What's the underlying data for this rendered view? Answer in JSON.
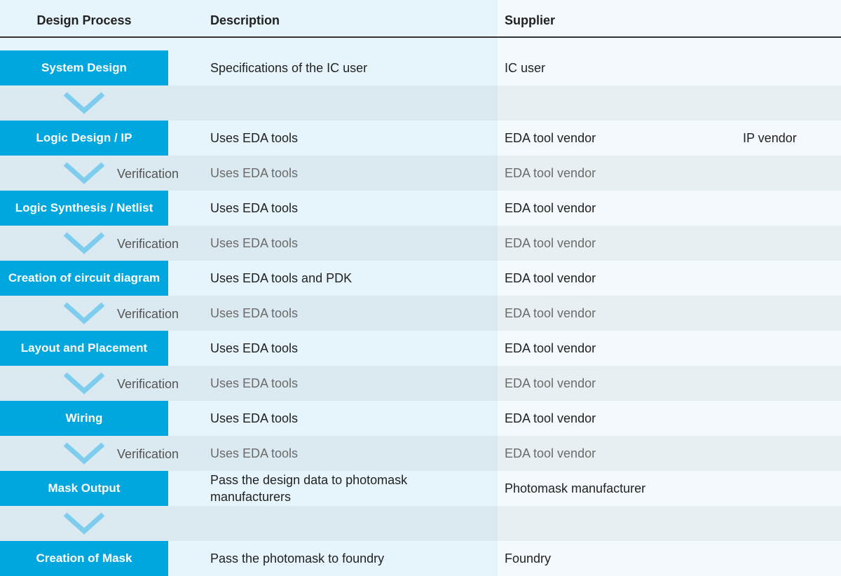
{
  "header": {
    "columns": [
      "Design Process",
      "Description",
      "Supplier"
    ]
  },
  "steps": [
    {
      "process": "System Design",
      "description": "Specifications of the IC user",
      "suppliers": [
        "IC user"
      ]
    },
    {
      "process": "Logic Design / IP",
      "description": "Uses EDA tools",
      "suppliers": [
        "EDA tool vendor",
        "IP vendor"
      ]
    },
    {
      "process": "Logic Synthesis / Netlist",
      "description": "Uses EDA tools",
      "suppliers": [
        "EDA tool vendor"
      ]
    },
    {
      "process": "Creation of circuit diagram",
      "description": "Uses EDA tools and PDK",
      "suppliers": [
        "EDA tool vendor"
      ]
    },
    {
      "process": "Layout and Placement",
      "description": "Uses EDA tools",
      "suppliers": [
        "EDA tool vendor"
      ]
    },
    {
      "process": "Wiring",
      "description": "Uses EDA tools",
      "suppliers": [
        "EDA tool vendor"
      ]
    },
    {
      "process": "Mask Output",
      "description": "Pass the design data to photomask manufacturers",
      "suppliers": [
        "Photomask manufacturer"
      ]
    },
    {
      "process": "Creation of Mask",
      "description": "Pass the photomask to foundry",
      "suppliers": [
        "Foundry"
      ]
    }
  ],
  "transitions": [
    {},
    {
      "label": "Verification",
      "description": "Uses EDA tools",
      "supplier": "EDA tool vendor"
    },
    {
      "label": "Verification",
      "description": "Uses EDA tools",
      "supplier": "EDA tool vendor"
    },
    {
      "label": "Verification",
      "description": "Uses EDA tools",
      "supplier": "EDA tool vendor"
    },
    {
      "label": "Verification",
      "description": "Uses EDA tools",
      "supplier": "EDA tool vendor"
    },
    {
      "label": "Verification",
      "description": "Uses EDA tools",
      "supplier": "EDA tool vendor"
    },
    {}
  ]
}
